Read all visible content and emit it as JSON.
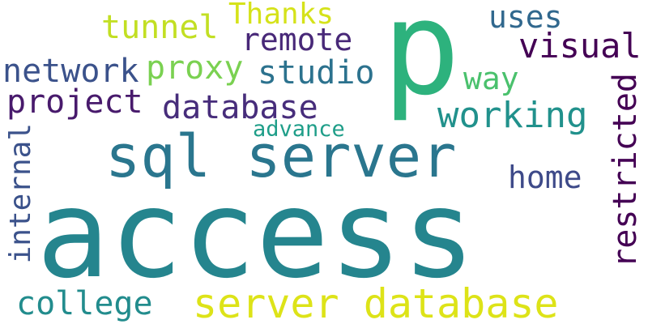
{
  "words": [
    {
      "id": "access",
      "text": "access",
      "color": "#25858e"
    },
    {
      "id": "sql-server",
      "text": "sql server",
      "color": "#2a768e"
    },
    {
      "id": "p",
      "text": "p",
      "color": "#2db27d"
    },
    {
      "id": "server-database",
      "text": "server database",
      "color": "#dde318"
    },
    {
      "id": "restricted",
      "text": "restricted",
      "color": "#440154"
    },
    {
      "id": "internal",
      "text": "internal",
      "color": "#3b528b"
    },
    {
      "id": "visual",
      "text": "visual",
      "color": "#440154"
    },
    {
      "id": "network",
      "text": "network",
      "color": "#3b528b"
    },
    {
      "id": "proxy",
      "text": "proxy",
      "color": "#7ad151"
    },
    {
      "id": "studio",
      "text": "studio",
      "color": "#2c728e"
    },
    {
      "id": "project",
      "text": "project",
      "color": "#481a6c"
    },
    {
      "id": "database",
      "text": "database",
      "color": "#472d7b"
    },
    {
      "id": "working",
      "text": "working",
      "color": "#21918c"
    },
    {
      "id": "remote",
      "text": "remote",
      "color": "#482878"
    },
    {
      "id": "tunnel",
      "text": "tunnel",
      "color": "#c2df23"
    },
    {
      "id": "thanks",
      "text": "Thanks",
      "color": "#d5e21a"
    },
    {
      "id": "uses",
      "text": "uses",
      "color": "#31688e"
    },
    {
      "id": "way",
      "text": "way",
      "color": "#4ac16d"
    },
    {
      "id": "home",
      "text": "home",
      "color": "#3e4a89"
    },
    {
      "id": "advance",
      "text": "advance",
      "color": "#1f9e89"
    },
    {
      "id": "college",
      "text": "college",
      "color": "#228c8d"
    }
  ]
}
